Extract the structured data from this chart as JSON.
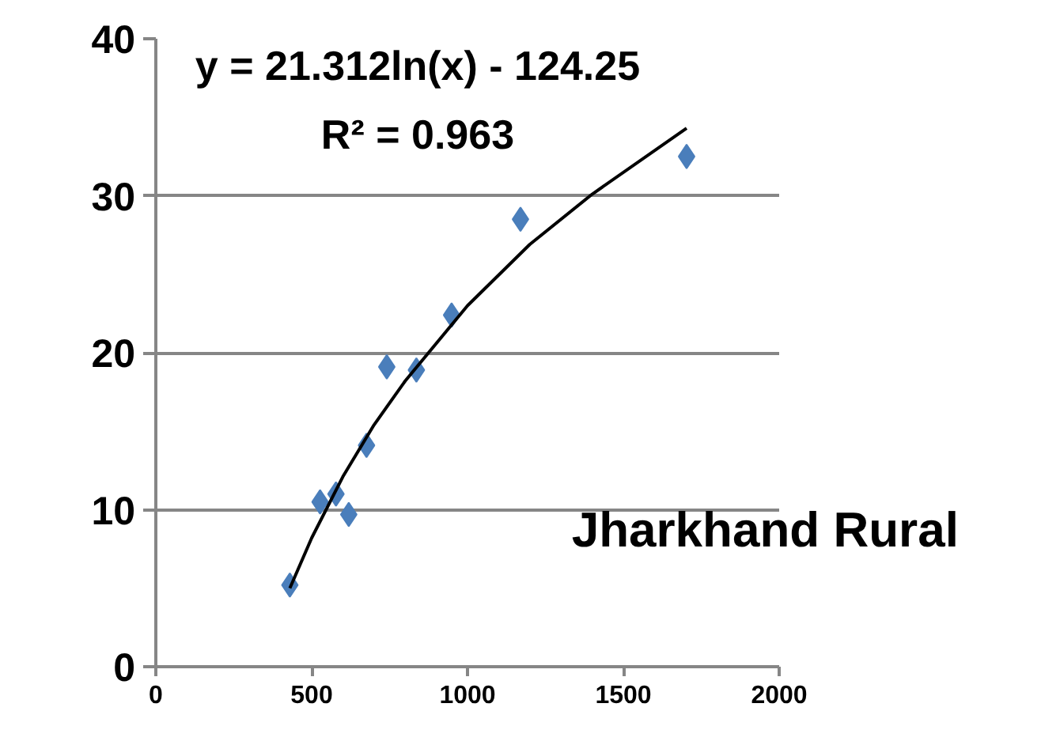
{
  "chart_data": {
    "type": "scatter",
    "x": [
      430,
      527,
      578,
      619,
      676,
      741,
      836,
      949,
      1170,
      1703
    ],
    "series": [
      {
        "type": "scatter",
        "color": "#4a7ebb",
        "marker": "diamond",
        "values": [
          5.2,
          10.5,
          11.0,
          9.7,
          14.1,
          19.1,
          18.9,
          22.4,
          28.5,
          32.5
        ]
      },
      {
        "type": "line",
        "color": "#000000",
        "x": [
          430,
          500,
          600,
          700,
          800,
          1000,
          1200,
          1400,
          1703
        ],
        "values": [
          5.0,
          8.2,
          12.1,
          15.4,
          18.2,
          23.0,
          26.9,
          30.1,
          34.3
        ]
      }
    ],
    "annotations": [
      "y = 21.312ln(x) - 124.25",
      "R² = 0.963",
      "Jharkhand Rural"
    ],
    "xlim": [
      0,
      2000
    ],
    "xticks": [
      0,
      500,
      1000,
      1500,
      2000
    ],
    "ylim": [
      0,
      40
    ],
    "yticks": [
      0,
      10,
      20,
      30,
      40
    ],
    "grid": "y"
  }
}
